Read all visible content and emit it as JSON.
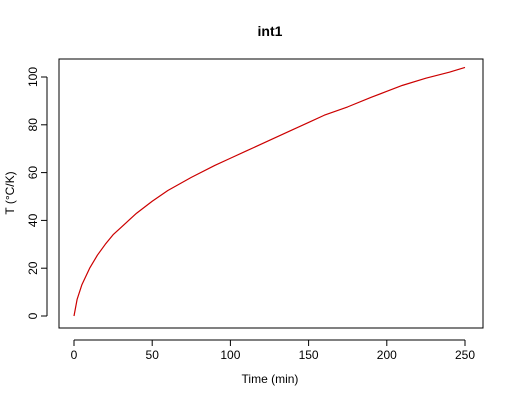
{
  "chart_data": {
    "type": "line",
    "title": "int1",
    "xlabel": "Time (min)",
    "ylabel": "T (°C/K)",
    "xlim": [
      0,
      250
    ],
    "ylim": [
      0,
      105
    ],
    "xticks": [
      0,
      50,
      100,
      150,
      200,
      250
    ],
    "yticks": [
      0,
      20,
      40,
      60,
      80,
      100
    ],
    "grid": false,
    "legend": "none",
    "series": [
      {
        "color": "#cc0000",
        "x": [
          0,
          2,
          5,
          10,
          15,
          20,
          25,
          30,
          40,
          50,
          60,
          75,
          90,
          100,
          110,
          125,
          140,
          150,
          160,
          175,
          190,
          200,
          210,
          225,
          240,
          250
        ],
        "y": [
          0,
          7,
          13,
          20,
          25.5,
          30,
          34,
          37,
          43,
          48,
          52.5,
          58,
          63,
          66,
          69,
          73.5,
          78,
          81,
          84,
          87.5,
          91.5,
          94,
          96.5,
          99.5,
          102,
          104
        ]
      }
    ]
  }
}
